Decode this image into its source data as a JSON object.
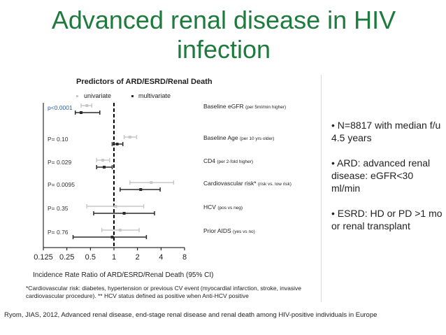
{
  "slide": {
    "title_line1": "Advanced renal disease in HIV",
    "title_line2": "infection",
    "bullets": [
      "• N=8817 with median f/u 4.5 years",
      "• ARD: advanced renal disease: eGFR<30 ml/min",
      "• ESRD: HD or PD >1 mo or renal transplant"
    ],
    "footnote_line1": "*Cardiovascular risk: diabetes, hypertension or previous CV event (myocardial infarction, stroke, invasive",
    "footnote_line2": "cardiovascular procedure).  ** HCV status defined as positive when Anti-HCV positive",
    "citation": "Ryom, JIAS, 2012, Advanced renal disease, end-stage renal disease and renal death among HIV-positive individuals in Europe"
  },
  "colors": {
    "title": "#1F7A3E",
    "univariate": "#c8c8c8",
    "multivariate": "#2b2b2b",
    "axis": "#000000"
  },
  "chart_data": {
    "type": "forest",
    "title": "Predictors of ARD/ESRD/Renal Death",
    "xlabel": "Incidence Rate Ratio of ARD/ESRD/Renal Death (95% CI)",
    "xscale": "log2",
    "xlim": [
      0.125,
      8
    ],
    "xticks": [
      0.125,
      0.25,
      0.5,
      1,
      2,
      4,
      8
    ],
    "xtick_labels": [
      "0.125",
      "0.25",
      "0.5",
      "1",
      "2",
      "4",
      "8"
    ],
    "reference_line": 1,
    "legend": [
      "univariate",
      "multivariate"
    ],
    "rows": [
      {
        "label": "Baseline eGFR",
        "label_note": "(per 5ml/min  higher)",
        "p": "p<0.0001",
        "univariate": {
          "est": 0.45,
          "lo": 0.38,
          "hi": 0.52
        },
        "multivariate": {
          "est": 0.38,
          "lo": 0.32,
          "hi": 0.66
        }
      },
      {
        "label": "Baseline Age",
        "label_note": "(per 10 yrs older)",
        "p": "P= 0.10",
        "univariate": {
          "est": 1.6,
          "lo": 1.35,
          "hi": 1.95
        },
        "multivariate": {
          "est": 1.1,
          "lo": 0.95,
          "hi": 1.3
        }
      },
      {
        "label": "CD4",
        "label_note": "(per 2-fold higher)",
        "p": "P= 0.029",
        "univariate": {
          "est": 0.72,
          "lo": 0.6,
          "hi": 0.88
        },
        "multivariate": {
          "est": 0.75,
          "lo": 0.6,
          "hi": 0.95
        }
      },
      {
        "label": "Cardiovascular risk*",
        "label_note": "(risk vs. low risk)",
        "p": "P= 0.0095",
        "univariate": {
          "est": 3.0,
          "lo": 1.6,
          "hi": 5.8
        },
        "multivariate": {
          "est": 2.2,
          "lo": 1.2,
          "hi": 3.9
        }
      },
      {
        "label": "HCV",
        "label_note": "(pos vs neg)",
        "p": "P= 0.35",
        "univariate": {
          "est": 1.05,
          "lo": 0.45,
          "hi": 2.4
        },
        "multivariate": {
          "est": 1.35,
          "lo": 0.55,
          "hi": 3.3
        }
      },
      {
        "label": "Prior AIDS",
        "label_note": "(yes vs no)",
        "p": "P= 0.76",
        "univariate": {
          "est": 1.2,
          "lo": 0.7,
          "hi": 2.1
        },
        "multivariate": {
          "est": 0.95,
          "lo": 0.3,
          "hi": 2.6
        }
      }
    ]
  }
}
